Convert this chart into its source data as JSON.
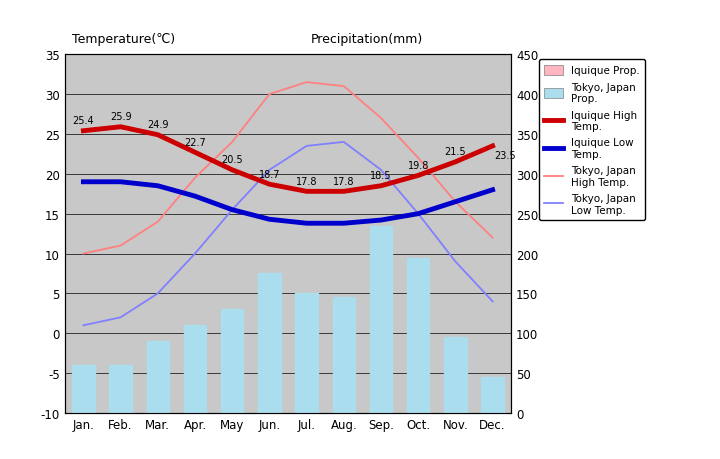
{
  "months": [
    "Jan.",
    "Feb.",
    "Mar.",
    "Apr.",
    "May",
    "Jun.",
    "Jul.",
    "Aug.",
    "Sep.",
    "Oct.",
    "Nov.",
    "Dec."
  ],
  "iquique_high": [
    25.4,
    25.9,
    24.9,
    22.7,
    20.5,
    18.7,
    17.8,
    17.8,
    18.5,
    19.8,
    21.5,
    23.5
  ],
  "iquique_low": [
    19.0,
    19.0,
    18.5,
    17.2,
    15.5,
    14.3,
    13.8,
    13.8,
    14.2,
    15.0,
    16.5,
    18.0
  ],
  "tokyo_high": [
    10.0,
    11.0,
    14.0,
    19.5,
    24.0,
    30.0,
    31.5,
    31.0,
    27.0,
    22.0,
    16.5,
    12.0
  ],
  "tokyo_low": [
    1.0,
    2.0,
    5.0,
    10.0,
    15.5,
    20.5,
    23.5,
    24.0,
    20.5,
    15.0,
    9.0,
    4.0
  ],
  "tokyo_precip_mm": [
    60,
    60,
    90,
    110,
    130,
    175,
    150,
    145,
    235,
    195,
    95,
    45
  ],
  "iquique_high_labels": [
    "25.4",
    "25.9",
    "24.9",
    "22.7",
    "20.5",
    "18.7",
    "17.8",
    "17.8",
    "18.5",
    "19.8",
    "21.5",
    "23.5"
  ],
  "bg_color": "#c8c8c8",
  "title_left": "Temperature(℃)",
  "title_right": "Precipitation(mm)",
  "ylim_temp": [
    -10,
    35
  ],
  "ylim_precip": [
    0,
    450
  ],
  "yticks_temp": [
    -10,
    -5,
    0,
    5,
    10,
    15,
    20,
    25,
    30,
    35
  ],
  "yticks_precip": [
    0,
    50,
    100,
    150,
    200,
    250,
    300,
    350,
    400,
    450
  ],
  "iquique_high_color": "#cc0000",
  "iquique_low_color": "#0000cc",
  "tokyo_high_color": "#ff8080",
  "tokyo_low_color": "#8080ff",
  "iquique_precip_color": "#ffb6c1",
  "tokyo_precip_color": "#aaddee",
  "linewidth_thick": 3.5,
  "linewidth_thin": 1.3,
  "legend_labels": [
    "Iquique Prop.",
    "Tokyo, Japan\nProp.",
    "Iquique High\nTemp.",
    "Iquique Low\nTemp.",
    "Tokyo, Japan\nHigh Temp.",
    "Tokyo, Japan\nLow Temp."
  ]
}
